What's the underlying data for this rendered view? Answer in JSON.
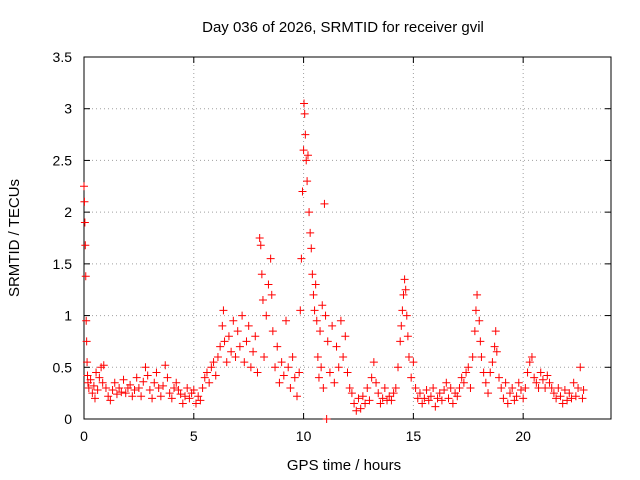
{
  "chart_data": {
    "type": "scatter",
    "title": "Day 036 of 2026, SRMTID for receiver gvil",
    "xlabel": "GPS time / hours",
    "ylabel": "SRMTID / TECUs",
    "xlim": [
      0,
      24
    ],
    "ylim": [
      0,
      3.5
    ],
    "x_ticks": [
      0,
      5,
      10,
      15,
      20
    ],
    "x_tick_labels": [
      "0",
      "5",
      "10",
      "15",
      "20"
    ],
    "y_ticks": [
      0,
      0.5,
      1,
      1.5,
      2,
      2.5,
      3,
      3.5
    ],
    "y_tick_labels": [
      "0",
      "0.5",
      "1",
      "1.5",
      "2",
      "2.5",
      "3",
      "3.5"
    ],
    "grid": true,
    "marker": "+",
    "color": "#ff0000",
    "series": [
      {
        "name": "SRMTID",
        "points": [
          [
            0.0,
            2.25
          ],
          [
            0.02,
            2.1
          ],
          [
            0.04,
            1.9
          ],
          [
            0.06,
            1.68
          ],
          [
            0.08,
            1.38
          ],
          [
            0.1,
            0.95
          ],
          [
            0.12,
            0.75
          ],
          [
            0.14,
            0.55
          ],
          [
            0.16,
            0.42
          ],
          [
            0.18,
            0.35
          ],
          [
            0.22,
            0.3
          ],
          [
            0.3,
            0.38
          ],
          [
            0.38,
            0.25
          ],
          [
            0.45,
            0.32
          ],
          [
            0.5,
            0.2
          ],
          [
            0.55,
            0.45
          ],
          [
            0.62,
            0.28
          ],
          [
            0.7,
            0.4
          ],
          [
            0.78,
            0.5
          ],
          [
            0.85,
            0.35
          ],
          [
            0.9,
            0.52
          ],
          [
            1.0,
            0.3
          ],
          [
            1.1,
            0.22
          ],
          [
            1.2,
            0.18
          ],
          [
            1.3,
            0.28
          ],
          [
            1.4,
            0.35
          ],
          [
            1.5,
            0.24
          ],
          [
            1.6,
            0.3
          ],
          [
            1.7,
            0.26
          ],
          [
            1.8,
            0.38
          ],
          [
            1.9,
            0.25
          ],
          [
            2.0,
            0.3
          ],
          [
            2.1,
            0.33
          ],
          [
            2.2,
            0.22
          ],
          [
            2.3,
            0.28
          ],
          [
            2.4,
            0.4
          ],
          [
            2.5,
            0.3
          ],
          [
            2.6,
            0.22
          ],
          [
            2.7,
            0.36
          ],
          [
            2.8,
            0.5
          ],
          [
            2.9,
            0.42
          ],
          [
            3.0,
            0.28
          ],
          [
            3.1,
            0.2
          ],
          [
            3.2,
            0.35
          ],
          [
            3.3,
            0.45
          ],
          [
            3.4,
            0.3
          ],
          [
            3.5,
            0.22
          ],
          [
            3.6,
            0.32
          ],
          [
            3.7,
            0.52
          ],
          [
            3.8,
            0.4
          ],
          [
            3.9,
            0.25
          ],
          [
            4.0,
            0.2
          ],
          [
            4.1,
            0.3
          ],
          [
            4.2,
            0.35
          ],
          [
            4.3,
            0.28
          ],
          [
            4.4,
            0.24
          ],
          [
            4.5,
            0.15
          ],
          [
            4.6,
            0.22
          ],
          [
            4.7,
            0.3
          ],
          [
            4.8,
            0.2
          ],
          [
            4.9,
            0.25
          ],
          [
            5.0,
            0.28
          ],
          [
            5.1,
            0.15
          ],
          [
            5.2,
            0.22
          ],
          [
            5.3,
            0.18
          ],
          [
            5.4,
            0.3
          ],
          [
            5.5,
            0.4
          ],
          [
            5.6,
            0.45
          ],
          [
            5.7,
            0.35
          ],
          [
            5.8,
            0.5
          ],
          [
            5.9,
            0.55
          ],
          [
            6.0,
            0.42
          ],
          [
            6.1,
            0.6
          ],
          [
            6.2,
            0.7
          ],
          [
            6.3,
            0.9
          ],
          [
            6.35,
            1.05
          ],
          [
            6.4,
            0.75
          ],
          [
            6.5,
            0.55
          ],
          [
            6.6,
            0.8
          ],
          [
            6.7,
            0.65
          ],
          [
            6.8,
            0.95
          ],
          [
            6.9,
            0.6
          ],
          [
            7.0,
            0.85
          ],
          [
            7.1,
            0.7
          ],
          [
            7.2,
            1.0
          ],
          [
            7.3,
            0.55
          ],
          [
            7.4,
            0.75
          ],
          [
            7.5,
            0.9
          ],
          [
            7.6,
            0.5
          ],
          [
            7.7,
            0.65
          ],
          [
            7.8,
            0.8
          ],
          [
            7.9,
            0.45
          ],
          [
            8.0,
            1.75
          ],
          [
            8.05,
            1.68
          ],
          [
            8.1,
            1.4
          ],
          [
            8.15,
            1.15
          ],
          [
            8.2,
            0.6
          ],
          [
            8.3,
            1.0
          ],
          [
            8.4,
            1.3
          ],
          [
            8.5,
            1.55
          ],
          [
            8.55,
            1.2
          ],
          [
            8.6,
            0.85
          ],
          [
            8.7,
            0.5
          ],
          [
            8.8,
            0.7
          ],
          [
            8.9,
            0.35
          ],
          [
            9.0,
            0.55
          ],
          [
            9.1,
            0.42
          ],
          [
            9.2,
            0.95
          ],
          [
            9.3,
            0.5
          ],
          [
            9.4,
            0.3
          ],
          [
            9.5,
            0.6
          ],
          [
            9.6,
            0.4
          ],
          [
            9.7,
            0.22
          ],
          [
            9.8,
            0.45
          ],
          [
            9.85,
            1.05
          ],
          [
            9.9,
            1.55
          ],
          [
            9.95,
            2.2
          ],
          [
            10.0,
            2.6
          ],
          [
            10.02,
            3.05
          ],
          [
            10.05,
            2.95
          ],
          [
            10.08,
            2.75
          ],
          [
            10.12,
            2.5
          ],
          [
            10.16,
            2.3
          ],
          [
            10.2,
            2.55
          ],
          [
            10.25,
            2.0
          ],
          [
            10.3,
            1.8
          ],
          [
            10.35,
            1.65
          ],
          [
            10.4,
            1.4
          ],
          [
            10.45,
            1.2
          ],
          [
            10.5,
            1.05
          ],
          [
            10.55,
            1.3
          ],
          [
            10.6,
            0.95
          ],
          [
            10.65,
            0.6
          ],
          [
            10.7,
            0.4
          ],
          [
            10.75,
            0.85
          ],
          [
            10.8,
            0.5
          ],
          [
            10.85,
            1.1
          ],
          [
            10.9,
            0.3
          ],
          [
            10.95,
            2.08
          ],
          [
            11.0,
            1.0
          ],
          [
            11.05,
            0.0
          ],
          [
            11.1,
            0.75
          ],
          [
            11.2,
            0.45
          ],
          [
            11.3,
            0.9
          ],
          [
            11.4,
            0.35
          ],
          [
            11.5,
            0.7
          ],
          [
            11.6,
            0.5
          ],
          [
            11.7,
            0.95
          ],
          [
            11.8,
            0.6
          ],
          [
            11.9,
            0.8
          ],
          [
            12.0,
            0.45
          ],
          [
            12.1,
            0.3
          ],
          [
            12.2,
            0.25
          ],
          [
            12.3,
            0.15
          ],
          [
            12.4,
            0.08
          ],
          [
            12.5,
            0.2
          ],
          [
            12.6,
            0.1
          ],
          [
            12.7,
            0.22
          ],
          [
            12.8,
            0.15
          ],
          [
            12.9,
            0.3
          ],
          [
            13.0,
            0.18
          ],
          [
            13.1,
            0.4
          ],
          [
            13.2,
            0.55
          ],
          [
            13.3,
            0.35
          ],
          [
            13.4,
            0.25
          ],
          [
            13.5,
            0.15
          ],
          [
            13.6,
            0.2
          ],
          [
            13.7,
            0.3
          ],
          [
            13.8,
            0.18
          ],
          [
            13.9,
            0.22
          ],
          [
            14.0,
            0.18
          ],
          [
            14.1,
            0.25
          ],
          [
            14.2,
            0.3
          ],
          [
            14.3,
            0.5
          ],
          [
            14.4,
            0.75
          ],
          [
            14.45,
            0.9
          ],
          [
            14.5,
            1.05
          ],
          [
            14.55,
            1.2
          ],
          [
            14.6,
            1.35
          ],
          [
            14.65,
            1.25
          ],
          [
            14.7,
            1.0
          ],
          [
            14.75,
            0.8
          ],
          [
            14.8,
            0.6
          ],
          [
            14.9,
            0.4
          ],
          [
            15.0,
            0.55
          ],
          [
            15.1,
            0.3
          ],
          [
            15.2,
            0.2
          ],
          [
            15.3,
            0.25
          ],
          [
            15.4,
            0.15
          ],
          [
            15.5,
            0.2
          ],
          [
            15.6,
            0.28
          ],
          [
            15.7,
            0.18
          ],
          [
            15.8,
            0.22
          ],
          [
            15.9,
            0.3
          ],
          [
            16.0,
            0.12
          ],
          [
            16.1,
            0.2
          ],
          [
            16.2,
            0.25
          ],
          [
            16.3,
            0.18
          ],
          [
            16.4,
            0.28
          ],
          [
            16.5,
            0.35
          ],
          [
            16.6,
            0.2
          ],
          [
            16.7,
            0.3
          ],
          [
            16.8,
            0.15
          ],
          [
            16.9,
            0.25
          ],
          [
            17.0,
            0.22
          ],
          [
            17.1,
            0.3
          ],
          [
            17.2,
            0.4
          ],
          [
            17.3,
            0.35
          ],
          [
            17.4,
            0.45
          ],
          [
            17.5,
            0.5
          ],
          [
            17.6,
            0.3
          ],
          [
            17.7,
            0.6
          ],
          [
            17.8,
            0.85
          ],
          [
            17.85,
            1.05
          ],
          [
            17.9,
            1.2
          ],
          [
            18.0,
            0.95
          ],
          [
            18.05,
            0.75
          ],
          [
            18.1,
            0.6
          ],
          [
            18.2,
            0.45
          ],
          [
            18.3,
            0.35
          ],
          [
            18.4,
            0.25
          ],
          [
            18.5,
            0.45
          ],
          [
            18.6,
            0.55
          ],
          [
            18.7,
            0.7
          ],
          [
            18.75,
            0.85
          ],
          [
            18.8,
            0.65
          ],
          [
            18.9,
            0.4
          ],
          [
            19.0,
            0.3
          ],
          [
            19.1,
            0.2
          ],
          [
            19.2,
            0.35
          ],
          [
            19.3,
            0.15
          ],
          [
            19.4,
            0.25
          ],
          [
            19.5,
            0.3
          ],
          [
            19.6,
            0.18
          ],
          [
            19.7,
            0.22
          ],
          [
            19.8,
            0.35
          ],
          [
            19.9,
            0.28
          ],
          [
            20.0,
            0.2
          ],
          [
            20.1,
            0.3
          ],
          [
            20.2,
            0.45
          ],
          [
            20.3,
            0.55
          ],
          [
            20.4,
            0.6
          ],
          [
            20.5,
            0.4
          ],
          [
            20.6,
            0.35
          ],
          [
            20.7,
            0.3
          ],
          [
            20.8,
            0.45
          ],
          [
            20.9,
            0.38
          ],
          [
            21.0,
            0.3
          ],
          [
            21.1,
            0.42
          ],
          [
            21.2,
            0.35
          ],
          [
            21.3,
            0.3
          ],
          [
            21.4,
            0.25
          ],
          [
            21.5,
            0.2
          ],
          [
            21.6,
            0.3
          ],
          [
            21.7,
            0.22
          ],
          [
            21.8,
            0.15
          ],
          [
            21.9,
            0.28
          ],
          [
            22.0,
            0.18
          ],
          [
            22.1,
            0.25
          ],
          [
            22.2,
            0.2
          ],
          [
            22.3,
            0.35
          ],
          [
            22.4,
            0.22
          ],
          [
            22.5,
            0.3
          ],
          [
            22.6,
            0.5
          ],
          [
            22.7,
            0.2
          ],
          [
            22.75,
            0.28
          ]
        ]
      }
    ]
  }
}
